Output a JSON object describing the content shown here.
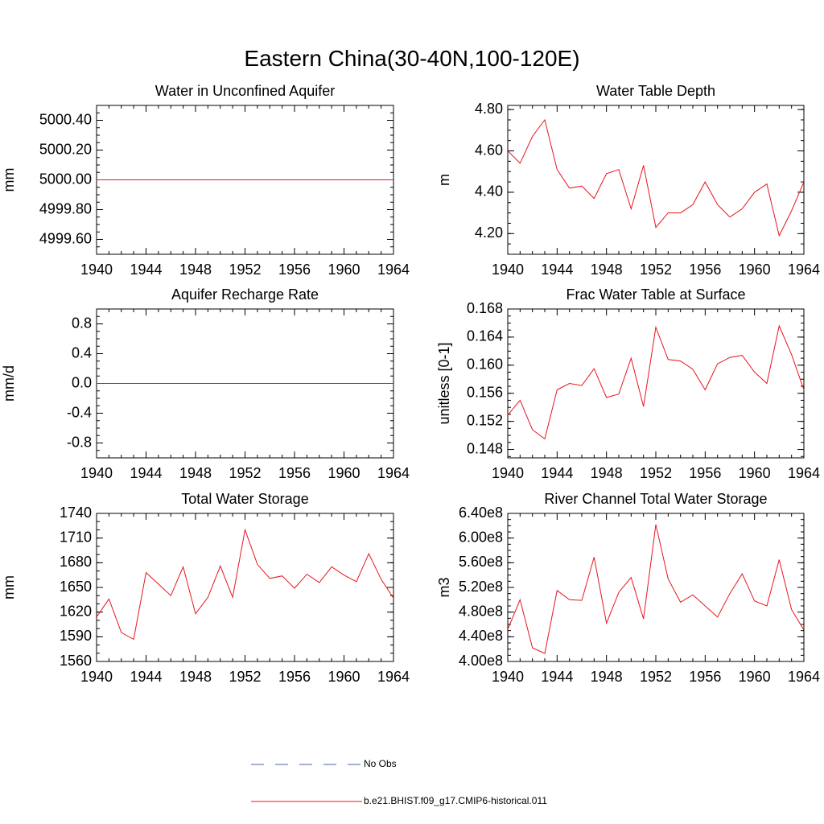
{
  "figure": {
    "title": "Eastern China(30-40N,100-120E)"
  },
  "colors": {
    "model": "#e8141e",
    "obs": "#4a5fa8",
    "axis": "#000000"
  },
  "legend": {
    "placement": "bottom-center",
    "entries": [
      {
        "label": "No Obs",
        "style": "dashed",
        "color": "#4a5fa8"
      },
      {
        "label": "b.e21.BHIST.f09_g17.CMIP6-historical.011",
        "style": "solid",
        "color": "#e8141e"
      }
    ]
  },
  "chart_data": [
    {
      "type": "line",
      "title": "Water in Unconfined Aquifer",
      "ylabel": "mm",
      "xlim": [
        1940,
        1964
      ],
      "ylim": [
        4999.5,
        5000.5
      ],
      "xticks": [
        1940,
        1944,
        1948,
        1952,
        1956,
        1960,
        1964
      ],
      "yticks": [
        4999.6,
        4999.8,
        5000.0,
        5000.2,
        5000.4
      ],
      "yticklabels": [
        "4999.60",
        "4999.80",
        "5000.00",
        "5000.20",
        "5000.40"
      ],
      "yminor": 0.05,
      "series": [
        {
          "name": "b.e21.BHIST.f09_g17.CMIP6-historical.011",
          "x": [
            1940,
            1964
          ],
          "y": [
            5000.0,
            5000.0
          ]
        }
      ]
    },
    {
      "type": "line",
      "title": "Water Table Depth",
      "ylabel": "m",
      "xlim": [
        1940,
        1964
      ],
      "ylim": [
        4.1,
        4.82
      ],
      "xticks": [
        1940,
        1944,
        1948,
        1952,
        1956,
        1960,
        1964
      ],
      "yticks": [
        4.2,
        4.4,
        4.6,
        4.8
      ],
      "yticklabels": [
        "4.20",
        "4.40",
        "4.60",
        "4.80"
      ],
      "yminor": 0.05,
      "series": [
        {
          "name": "b.e21.BHIST.f09_g17.CMIP6-historical.011",
          "x": [
            1940,
            1941,
            1942,
            1943,
            1944,
            1945,
            1946,
            1947,
            1948,
            1949,
            1950,
            1951,
            1952,
            1953,
            1954,
            1955,
            1956,
            1957,
            1958,
            1959,
            1960,
            1961,
            1962,
            1963,
            1964
          ],
          "y": [
            4.6,
            4.54,
            4.67,
            4.75,
            4.51,
            4.42,
            4.43,
            4.37,
            4.49,
            4.51,
            4.32,
            4.53,
            4.23,
            4.3,
            4.3,
            4.34,
            4.45,
            4.34,
            4.28,
            4.32,
            4.4,
            4.44,
            4.19,
            4.31,
            4.45
          ]
        }
      ]
    },
    {
      "type": "line",
      "title": "Aquifer Recharge Rate",
      "ylabel": "mm/d",
      "xlim": [
        1940,
        1964
      ],
      "ylim": [
        -1.0,
        1.0
      ],
      "xticks": [
        1940,
        1944,
        1948,
        1952,
        1956,
        1960,
        1964
      ],
      "yticks": [
        -0.8,
        -0.4,
        0.0,
        0.4,
        0.8
      ],
      "yticklabels": [
        "-0.8",
        "-0.4",
        "0.0",
        "0.4",
        "0.8"
      ],
      "yminor": 0.1,
      "series": [
        {
          "name": "b.e21.BHIST.f09_g17.CMIP6-historical.011",
          "x": [
            1940,
            1964
          ],
          "y": [
            0.0,
            0.0
          ]
        }
      ]
    },
    {
      "type": "line",
      "title": "Frac Water Table at Surface",
      "ylabel": "unitless [0-1]",
      "xlim": [
        1940,
        1964
      ],
      "ylim": [
        0.1468,
        0.168
      ],
      "xticks": [
        1940,
        1944,
        1948,
        1952,
        1956,
        1960,
        1964
      ],
      "yticks": [
        0.148,
        0.152,
        0.156,
        0.16,
        0.164,
        0.168
      ],
      "yticklabels": [
        "0.148",
        "0.152",
        "0.156",
        "0.160",
        "0.164",
        "0.168"
      ],
      "yminor": 0.001,
      "series": [
        {
          "name": "b.e21.BHIST.f09_g17.CMIP6-historical.011",
          "x": [
            1940,
            1941,
            1942,
            1943,
            1944,
            1945,
            1946,
            1947,
            1948,
            1949,
            1950,
            1951,
            1952,
            1953,
            1954,
            1955,
            1956,
            1957,
            1958,
            1959,
            1960,
            1961,
            1962,
            1963,
            1964
          ],
          "y": [
            0.1529,
            0.155,
            0.1508,
            0.1495,
            0.1565,
            0.1574,
            0.1571,
            0.1595,
            0.1554,
            0.1559,
            0.161,
            0.1541,
            0.1654,
            0.1608,
            0.1606,
            0.1594,
            0.1565,
            0.1602,
            0.1611,
            0.1614,
            0.159,
            0.1574,
            0.1656,
            0.1615,
            0.1565
          ]
        }
      ]
    },
    {
      "type": "line",
      "title": "Total Water Storage",
      "ylabel": "mm",
      "xlim": [
        1940,
        1964
      ],
      "ylim": [
        1560,
        1740
      ],
      "xticks": [
        1940,
        1944,
        1948,
        1952,
        1956,
        1960,
        1964
      ],
      "yticks": [
        1560,
        1590,
        1620,
        1650,
        1680,
        1710,
        1740
      ],
      "yticklabels": [
        "1560",
        "1590",
        "1620",
        "1650",
        "1680",
        "1710",
        "1740"
      ],
      "yminor": 10,
      "series": [
        {
          "name": "b.e21.BHIST.f09_g17.CMIP6-historical.011",
          "x": [
            1940,
            1941,
            1942,
            1943,
            1944,
            1945,
            1946,
            1947,
            1948,
            1949,
            1950,
            1951,
            1952,
            1953,
            1954,
            1955,
            1956,
            1957,
            1958,
            1959,
            1960,
            1961,
            1962,
            1963,
            1964
          ],
          "y": [
            1614,
            1636,
            1595,
            1587,
            1668,
            1654,
            1640,
            1675,
            1618,
            1638,
            1676,
            1638,
            1720,
            1678,
            1661,
            1664,
            1649,
            1666,
            1656,
            1675,
            1665,
            1657,
            1691,
            1660,
            1637
          ]
        }
      ]
    },
    {
      "type": "line",
      "title": "River Channel Total Water Storage",
      "ylabel": "m3",
      "xlim": [
        1940,
        1964
      ],
      "ylim": [
        400000000,
        640000000
      ],
      "xticks": [
        1940,
        1944,
        1948,
        1952,
        1956,
        1960,
        1964
      ],
      "yticks": [
        400000000,
        440000000,
        480000000,
        520000000,
        560000000,
        600000000,
        640000000
      ],
      "yticklabels": [
        "4.00e8",
        "4.40e8",
        "4.80e8",
        "5.20e8",
        "5.60e8",
        "6.00e8",
        "6.40e8"
      ],
      "yminor": 10000000,
      "series": [
        {
          "name": "b.e21.BHIST.f09_g17.CMIP6-historical.011",
          "x": [
            1940,
            1941,
            1942,
            1943,
            1944,
            1945,
            1946,
            1947,
            1948,
            1949,
            1950,
            1951,
            1952,
            1953,
            1954,
            1955,
            1956,
            1957,
            1958,
            1959,
            1960,
            1961,
            1962,
            1963,
            1964
          ],
          "y": [
            452000000,
            500000000,
            422000000,
            413000000,
            515000000,
            500000000,
            499000000,
            569000000,
            462000000,
            512000000,
            536000000,
            469000000,
            622000000,
            534000000,
            496000000,
            508000000,
            490000000,
            472000000,
            510000000,
            542000000,
            498000000,
            490000000,
            565000000,
            484000000,
            451000000
          ]
        }
      ]
    }
  ]
}
